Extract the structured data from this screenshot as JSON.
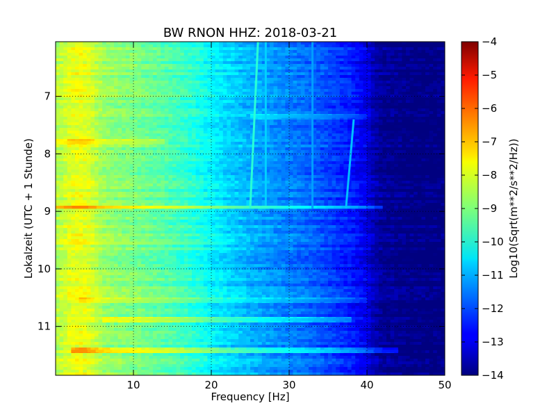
{
  "chart_data": {
    "type": "heatmap",
    "title": "BW RNON HHZ: 2018-03-21",
    "xlabel": "Frequency [Hz]",
    "ylabel": "Lokalzeit (UTC + 1 Stunde)",
    "xlim": [
      0,
      50
    ],
    "ylim": [
      6.05,
      11.85
    ],
    "y_inverted": true,
    "x_ticks": [
      10,
      20,
      30,
      40,
      50
    ],
    "y_ticks": [
      7,
      8,
      9,
      10,
      11
    ],
    "grid": true,
    "colormap": "jet",
    "colorbar": {
      "label": "Log10(Sqrt(m**2/s**2/Hz))",
      "range": [
        -14,
        -4
      ],
      "ticks": [
        -4,
        -5,
        -6,
        -7,
        -8,
        -9,
        -10,
        -11,
        -12,
        -13,
        -14
      ]
    },
    "spectrum_profile": {
      "frequency_hz": [
        0,
        1,
        2,
        3,
        4,
        5,
        6,
        8,
        10,
        12,
        15,
        18,
        20,
        22,
        25,
        28,
        30,
        33,
        36,
        38,
        40,
        41,
        42,
        44,
        46,
        50
      ],
      "log_amplitude": [
        -8.5,
        -8.3,
        -8.0,
        -7.9,
        -8.0,
        -8.3,
        -8.7,
        -8.9,
        -9.0,
        -9.2,
        -9.5,
        -9.9,
        -10.3,
        -10.6,
        -11.0,
        -11.3,
        -11.5,
        -11.8,
        -12.2,
        -12.5,
        -13.0,
        -13.5,
        -13.8,
        -13.9,
        -14.0,
        -14.0
      ]
    },
    "horizontal_events": [
      {
        "time": 8.93,
        "f_start": 0,
        "f_end": 42,
        "delta": 1.4
      },
      {
        "time": 11.43,
        "f_start": 2,
        "f_end": 44,
        "delta": 1.3
      },
      {
        "time": 10.88,
        "f_start": 6,
        "f_end": 38,
        "delta": 0.9
      },
      {
        "time": 10.55,
        "f_start": 3,
        "f_end": 40,
        "delta": 0.5
      },
      {
        "time": 7.8,
        "f_start": 0,
        "f_end": 14,
        "delta": 0.6
      },
      {
        "time": 9.55,
        "f_start": 0,
        "f_end": 22,
        "delta": 0.4
      },
      {
        "time": 7.35,
        "f_start": 25,
        "f_end": 40,
        "delta": 0.6
      }
    ],
    "drifting_lines": [
      {
        "f_at_start": 26.0,
        "f_at_end": 25.0,
        "t_start": 6.05,
        "t_end": 8.95,
        "delta": 1.2
      },
      {
        "f_at_start": 38.3,
        "f_at_end": 37.3,
        "t_start": 7.4,
        "t_end": 8.95,
        "delta": 1.6
      },
      {
        "f_at_start": 33.0,
        "f_at_end": 33.0,
        "t_start": 6.05,
        "t_end": 8.95,
        "delta": 0.6
      },
      {
        "f_at_start": 27.0,
        "f_at_end": 27.0,
        "t_start": 6.05,
        "t_end": 8.9,
        "delta": 0.5
      }
    ]
  }
}
